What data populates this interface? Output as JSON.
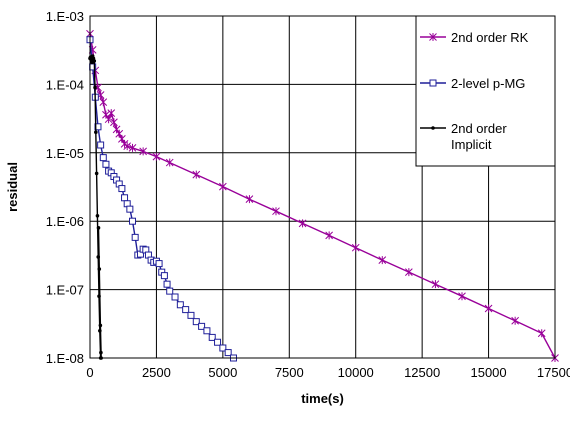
{
  "chart_data": {
    "type": "line",
    "title": "",
    "xlabel": "time(s)",
    "ylabel": "residual",
    "xlim": [
      0,
      17500
    ],
    "ylim": [
      1e-08,
      0.001
    ],
    "y_scale": "log",
    "grid": "on",
    "legend_position": "top-right",
    "x_ticks": [
      0,
      2500,
      5000,
      7500,
      10000,
      12500,
      15000,
      17500
    ],
    "x_tick_labels": [
      "0",
      "2500",
      "5000",
      "7500",
      "10000",
      "12500",
      "15000",
      "17500"
    ],
    "y_ticks": [
      1e-08,
      1e-07,
      1e-06,
      1e-05,
      0.0001,
      0.001
    ],
    "y_tick_labels": [
      "1.E-08",
      "1.E-07",
      "1.E-06",
      "1.E-05",
      "1.E-04",
      "1.E-03"
    ],
    "series": [
      {
        "name": "2nd order RK",
        "color": "#990099",
        "marker": "star",
        "x": [
          0,
          100,
          200,
          300,
          400,
          500,
          600,
          700,
          800,
          900,
          1000,
          1100,
          1200,
          1300,
          1400,
          1600,
          2000,
          2500,
          3000,
          4000,
          5000,
          6000,
          7000,
          8000,
          9000,
          10000,
          11000,
          12000,
          13000,
          14000,
          15000,
          16000,
          17000,
          17500
        ],
        "y": [
          0.00055,
          0.00032,
          0.00016,
          9e-05,
          7e-05,
          5.5e-05,
          3.6e-05,
          3.1e-05,
          3.8e-05,
          2.8e-05,
          2.2e-05,
          1.9e-05,
          1.6e-05,
          1.35e-05,
          1.25e-05,
          1.18e-05,
          1.05e-05,
          8.8e-06,
          7.2e-06,
          4.8e-06,
          3.2e-06,
          2.1e-06,
          1.4e-06,
          9.3e-07,
          6.2e-07,
          4.1e-07,
          2.7e-07,
          1.8e-07,
          1.2e-07,
          8e-08,
          5.3e-08,
          3.5e-08,
          2.3e-08,
          1e-08
        ]
      },
      {
        "name": "2-level p-MG",
        "color": "#1f1f99",
        "marker": "square",
        "x": [
          0,
          100,
          200,
          300,
          400,
          500,
          600,
          700,
          800,
          900,
          1000,
          1100,
          1200,
          1300,
          1400,
          1500,
          1600,
          1700,
          1800,
          1900,
          2000,
          2100,
          2200,
          2300,
          2400,
          2500,
          2600,
          2700,
          2800,
          2900,
          3000,
          3200,
          3400,
          3600,
          3800,
          4000,
          4200,
          4400,
          4600,
          4800,
          5000,
          5200,
          5400
        ],
        "y": [
          0.00045,
          0.00018,
          6.5e-05,
          2.4e-05,
          1.3e-05,
          8.5e-06,
          6.8e-06,
          5.4e-06,
          5.1e-06,
          4.5e-06,
          4e-06,
          3.5e-06,
          3e-06,
          2.2e-06,
          1.8e-06,
          1.5e-06,
          1e-06,
          5.8e-07,
          3.2e-07,
          3.3e-07,
          3.9e-07,
          3.8e-07,
          3.2e-07,
          2.7e-07,
          2.5e-07,
          2.6e-07,
          2.4e-07,
          1.8e-07,
          1.6e-07,
          1.2e-07,
          9.5e-08,
          7.8e-08,
          6e-08,
          5.1e-08,
          4.2e-08,
          3.4e-08,
          2.9e-08,
          2.5e-08,
          2e-08,
          1.7e-08,
          1.4e-08,
          1.2e-08,
          1e-08
        ]
      },
      {
        "name": "2nd order Implicit",
        "name_lines": [
          "2nd order",
          "Implicit"
        ],
        "color": "#000000",
        "marker": "dot",
        "x": [
          0,
          20,
          40,
          60,
          80,
          100,
          130,
          160,
          190,
          220,
          250,
          280,
          310,
          340,
          370,
          400,
          410,
          420,
          390,
          350,
          320
        ],
        "y": [
          0.00024,
          0.00025,
          0.00023,
          0.00022,
          0.00021,
          0.00026,
          0.00024,
          0.00022,
          9e-05,
          2e-05,
          5e-06,
          1.2e-06,
          3e-07,
          8e-08,
          2.5e-08,
          1e-08,
          1.2e-08,
          1e-08,
          3e-08,
          2e-07,
          8e-07
        ]
      }
    ]
  }
}
